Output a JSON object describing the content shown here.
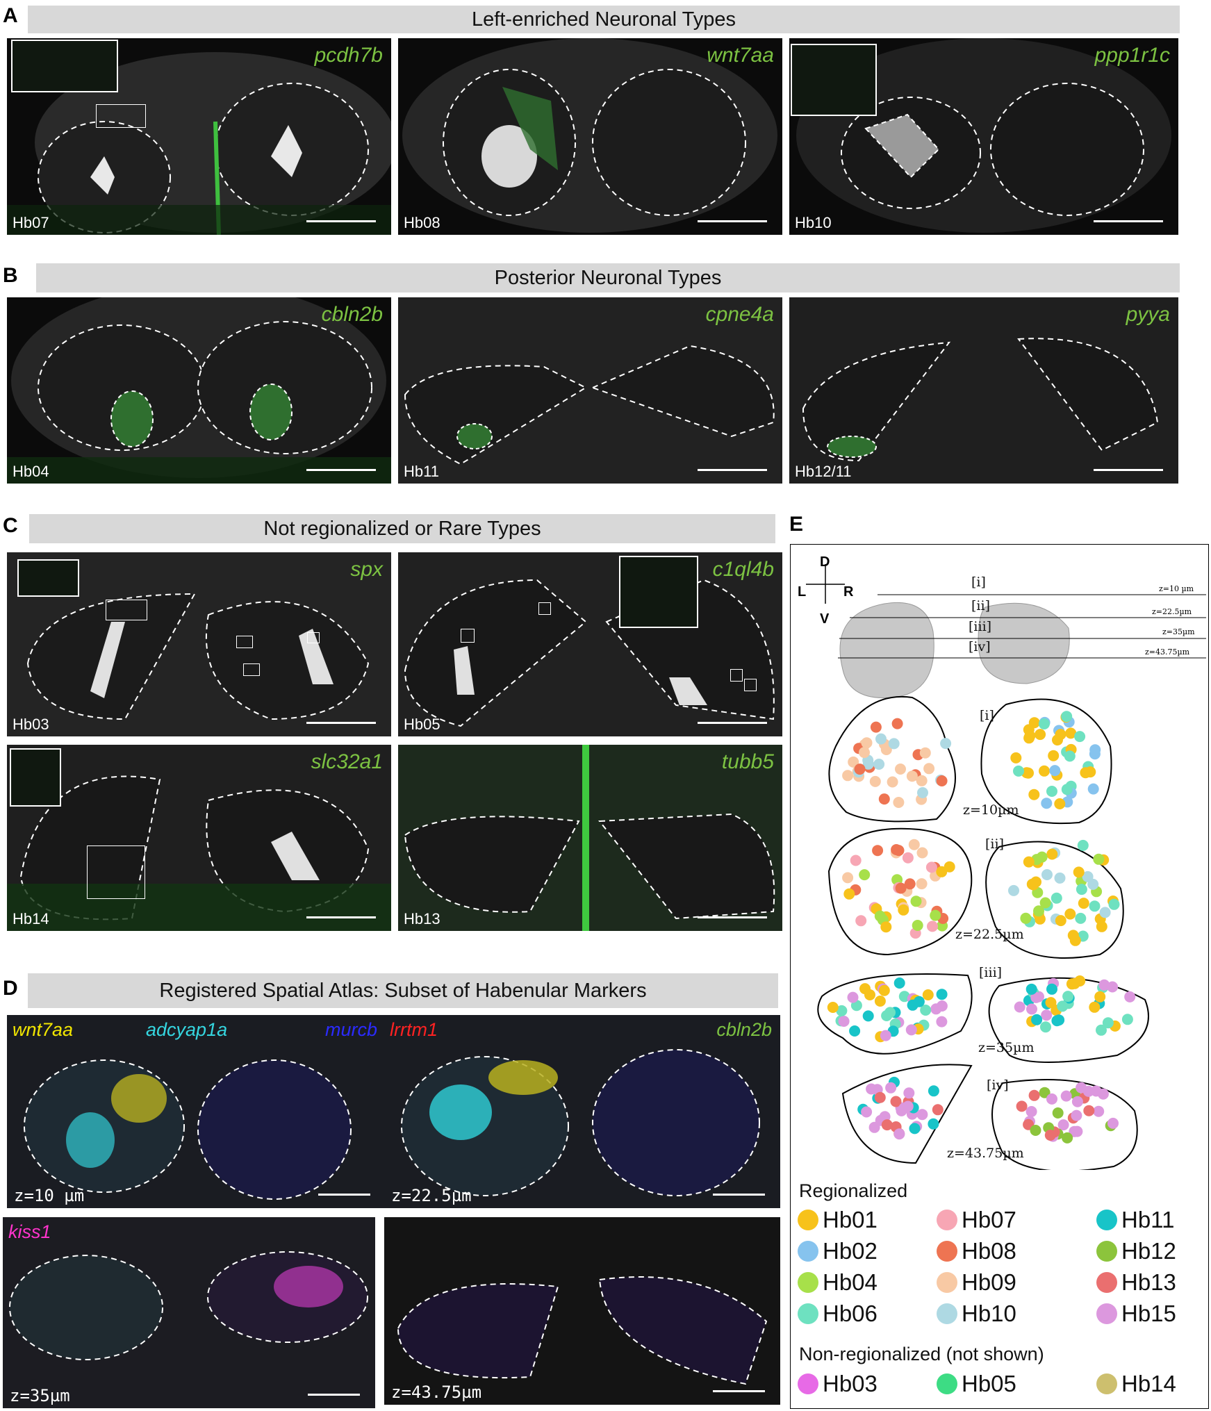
{
  "panels": {
    "A": {
      "letter": "A",
      "title": "Left-enriched Neuronal Types",
      "images": [
        {
          "gene": "pcdh7b",
          "label": "Hb07"
        },
        {
          "gene": "wnt7aa",
          "label": "Hb08"
        },
        {
          "gene": "ppp1r1c",
          "label": "Hb10"
        }
      ]
    },
    "B": {
      "letter": "B",
      "title": "Posterior Neuronal Types",
      "images": [
        {
          "gene": "cbln2b",
          "label": "Hb04"
        },
        {
          "gene": "cpne4a",
          "label": "Hb11"
        },
        {
          "gene": "pyya",
          "label": "Hb12/11"
        }
      ]
    },
    "C": {
      "letter": "C",
      "title": "Not regionalized or Rare Types",
      "images": [
        {
          "gene": "spx",
          "label": "Hb03"
        },
        {
          "gene": "c1ql4b",
          "label": "Hb05"
        },
        {
          "gene": "slc32a1",
          "label": "Hb14"
        },
        {
          "gene": "tubb5",
          "label": "Hb13"
        }
      ]
    },
    "D": {
      "letter": "D",
      "title": "Registered Spatial Atlas: Subset of Habenular Markers",
      "genes": [
        {
          "name": "wnt7aa",
          "color": "#f2e600"
        },
        {
          "name": "adcyap1a",
          "color": "#35d6e0"
        },
        {
          "name": "murcb",
          "color": "#2b2bff"
        },
        {
          "name": "lrrtm1",
          "color": "#ff2222"
        },
        {
          "name": "cbln2b",
          "color": "#7cc242"
        },
        {
          "name": "kiss1",
          "color": "#ff33cc"
        }
      ],
      "z_labels": [
        "z=10 µm",
        "z=22.5µm",
        "z=35µm",
        "z=43.75µm"
      ]
    },
    "E": {
      "letter": "E",
      "axes": {
        "d": "D",
        "v": "V",
        "l": "L",
        "r": "R"
      },
      "sections": [
        {
          "roman": "[i]",
          "z": "z=10 µm",
          "z_map": "z=10µm"
        },
        {
          "roman": "[ii]",
          "z": "z=22.5µm",
          "z_map": "z=22.5µm"
        },
        {
          "roman": "[iii]",
          "z": "z=35µm",
          "z_map": "z=35µm"
        },
        {
          "roman": "[iv]",
          "z": "z=43.75µm",
          "z_map": "z=43.75µm"
        }
      ],
      "legend": {
        "regionalized_title": "Regionalized",
        "regionalized": [
          {
            "label": "Hb01",
            "color": "#f7c21b"
          },
          {
            "label": "Hb07",
            "color": "#f7a6b4"
          },
          {
            "label": "Hb11",
            "color": "#18c4c8"
          },
          {
            "label": "Hb02",
            "color": "#86c3ee"
          },
          {
            "label": "Hb08",
            "color": "#ee7452"
          },
          {
            "label": "Hb12",
            "color": "#8cc43c"
          },
          {
            "label": "Hb04",
            "color": "#a7e04a"
          },
          {
            "label": "Hb09",
            "color": "#f8c9a4"
          },
          {
            "label": "Hb13",
            "color": "#ea6f6f"
          },
          {
            "label": "Hb06",
            "color": "#6ee1c0"
          },
          {
            "label": "Hb10",
            "color": "#aed9e3"
          },
          {
            "label": "Hb15",
            "color": "#dc98de"
          }
        ],
        "non_regionalized_title": "Non-regionalized (not shown)",
        "non_regionalized": [
          {
            "label": "Hb03",
            "color": "#e76ae6"
          },
          {
            "label": "Hb05",
            "color": "#3ddc84"
          },
          {
            "label": "Hb14",
            "color": "#cdbf6e"
          }
        ]
      }
    }
  }
}
